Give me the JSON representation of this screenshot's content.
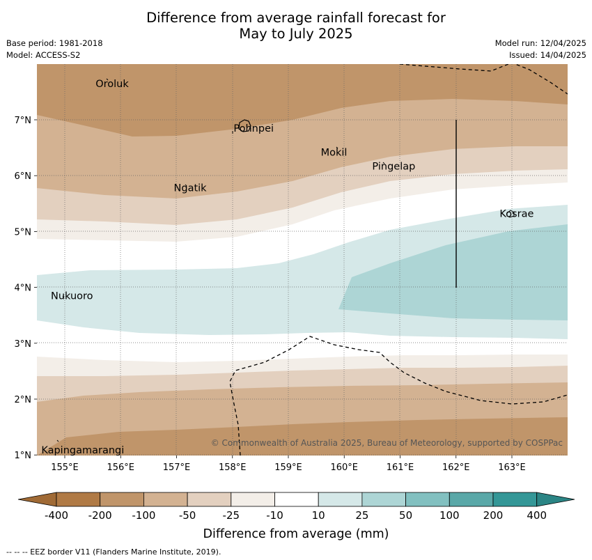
{
  "header": {
    "title_line1": "Difference from average rainfall forecast for",
    "title_line2": "May to July 2025",
    "base_period": "Base period: 1981-2018",
    "model": "Model: ACCESS-S2",
    "model_run": "Model run: 12/04/2025",
    "issued": "Issued: 14/04/2025"
  },
  "map": {
    "lon_ticks": [
      "155°E",
      "156°E",
      "157°E",
      "158°E",
      "159°E",
      "160°E",
      "161°E",
      "162°E",
      "163°E"
    ],
    "lat_ticks": [
      "7°N",
      "6°N",
      "5°N",
      "4°N",
      "3°N",
      "2°N",
      "1°N"
    ],
    "places": [
      {
        "name": "Oroluk",
        "lon": 155.75,
        "lat": 7.65
      },
      {
        "name": "Pohnpei",
        "lon": 158.22,
        "lat": 6.85
      },
      {
        "name": "Mokil",
        "lon": 159.78,
        "lat": 6.42
      },
      {
        "name": "Pingelap",
        "lon": 160.7,
        "lat": 6.17
      },
      {
        "name": "Ngatik",
        "lon": 157.15,
        "lat": 5.78
      },
      {
        "name": "Kosrae",
        "lon": 162.98,
        "lat": 5.32
      },
      {
        "name": "Nukuoro",
        "lon": 154.95,
        "lat": 3.85
      },
      {
        "name": "Kapingamarangi",
        "lon": 154.78,
        "lat": 1.08
      }
    ],
    "copyright": "© Commonwealth of Australia 2025, Bureau of Meteorology, supported by COSPPac"
  },
  "legend": {
    "labels": [
      "-400",
      "-200",
      "-100",
      "-50",
      "-25",
      "-10",
      "10",
      "25",
      "50",
      "100",
      "200",
      "400"
    ],
    "colors": [
      "#b07a45",
      "#c0956a",
      "#d3b292",
      "#e3d0bf",
      "#f3eee8",
      "#ffffff",
      "#d5e8e8",
      "#add5d5",
      "#82c0c0",
      "#5aa8a8",
      "#349797"
    ],
    "under_color": "#a06a35",
    "over_color": "#2b8585",
    "title": "Difference from average (mm)"
  },
  "footnote": "--  --  -- EEZ border V11 (Flanders Marine Institute, 2019)."
}
